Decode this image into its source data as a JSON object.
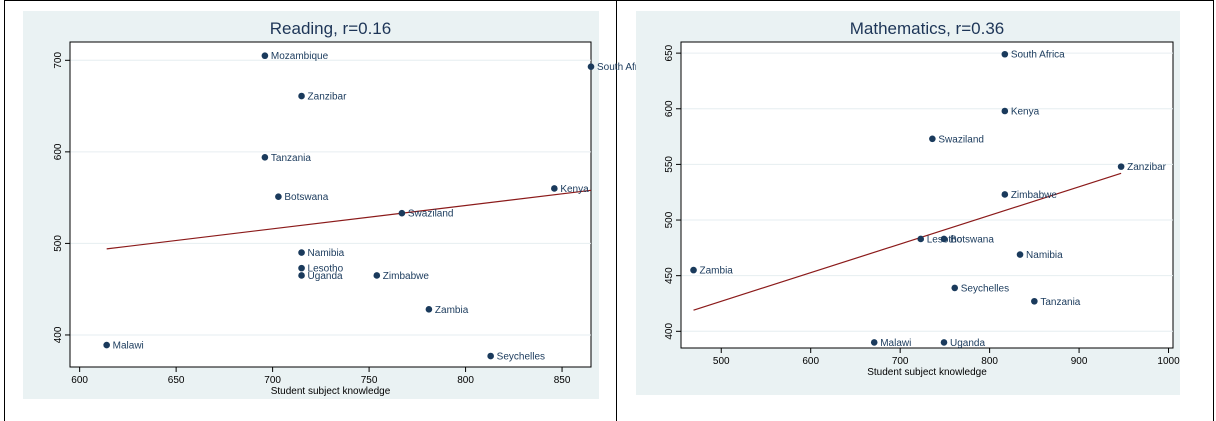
{
  "chart_data": [
    {
      "type": "scatter",
      "title": "Reading, r=0.16",
      "xlabel": "Student subject knowledge",
      "ylabel": "",
      "xlim": [
        595,
        865
      ],
      "ylim": [
        365,
        720
      ],
      "xticks": [
        600,
        650,
        700,
        750,
        800,
        850
      ],
      "yticks": [
        400,
        500,
        600,
        700
      ],
      "points": [
        {
          "label": "Mozambique",
          "x": 696,
          "y": 705
        },
        {
          "label": "South Africa",
          "x": 865,
          "y": 693
        },
        {
          "label": "Zanzibar",
          "x": 715,
          "y": 661
        },
        {
          "label": "Tanzania",
          "x": 696,
          "y": 594
        },
        {
          "label": "Botswana",
          "x": 703,
          "y": 551
        },
        {
          "label": "Kenya",
          "x": 846,
          "y": 560
        },
        {
          "label": "Swaziland",
          "x": 767,
          "y": 533
        },
        {
          "label": "Namibia",
          "x": 715,
          "y": 490
        },
        {
          "label": "Lesotho",
          "x": 715,
          "y": 473
        },
        {
          "label": "Uganda",
          "x": 715,
          "y": 465
        },
        {
          "label": "Zimbabwe",
          "x": 754,
          "y": 465
        },
        {
          "label": "Zambia",
          "x": 781,
          "y": 428
        },
        {
          "label": "Malawi",
          "x": 614,
          "y": 389
        },
        {
          "label": "Seychelles",
          "x": 813,
          "y": 377
        }
      ],
      "fit_line": {
        "x": [
          614,
          865
        ],
        "y": [
          494,
          558
        ]
      }
    },
    {
      "type": "scatter",
      "title": "Mathematics, r=0.36",
      "xlabel": "Student subject knowledge",
      "ylabel": "",
      "xlim": [
        455,
        1005
      ],
      "ylim": [
        385,
        660
      ],
      "xticks": [
        500,
        600,
        700,
        800,
        900,
        1000
      ],
      "yticks": [
        400,
        450,
        500,
        550,
        600,
        650
      ],
      "points": [
        {
          "label": "South Africa",
          "x": 817,
          "y": 649
        },
        {
          "label": "Kenya",
          "x": 817,
          "y": 598
        },
        {
          "label": "Swaziland",
          "x": 736,
          "y": 573
        },
        {
          "label": "Zanzibar",
          "x": 947,
          "y": 548
        },
        {
          "label": "Zimbabwe",
          "x": 817,
          "y": 523
        },
        {
          "label": "Lesotho",
          "x": 723,
          "y": 483
        },
        {
          "label": "Botswana",
          "x": 749,
          "y": 483
        },
        {
          "label": "Namibia",
          "x": 834,
          "y": 469
        },
        {
          "label": "Zambia",
          "x": 469,
          "y": 455
        },
        {
          "label": "Seychelles",
          "x": 761,
          "y": 439
        },
        {
          "label": "Tanzania",
          "x": 850,
          "y": 427
        },
        {
          "label": "Malawi",
          "x": 671,
          "y": 390
        },
        {
          "label": "Uganda",
          "x": 749,
          "y": 390
        }
      ],
      "fit_line": {
        "x": [
          469,
          947
        ],
        "y": [
          419,
          542
        ]
      }
    }
  ]
}
